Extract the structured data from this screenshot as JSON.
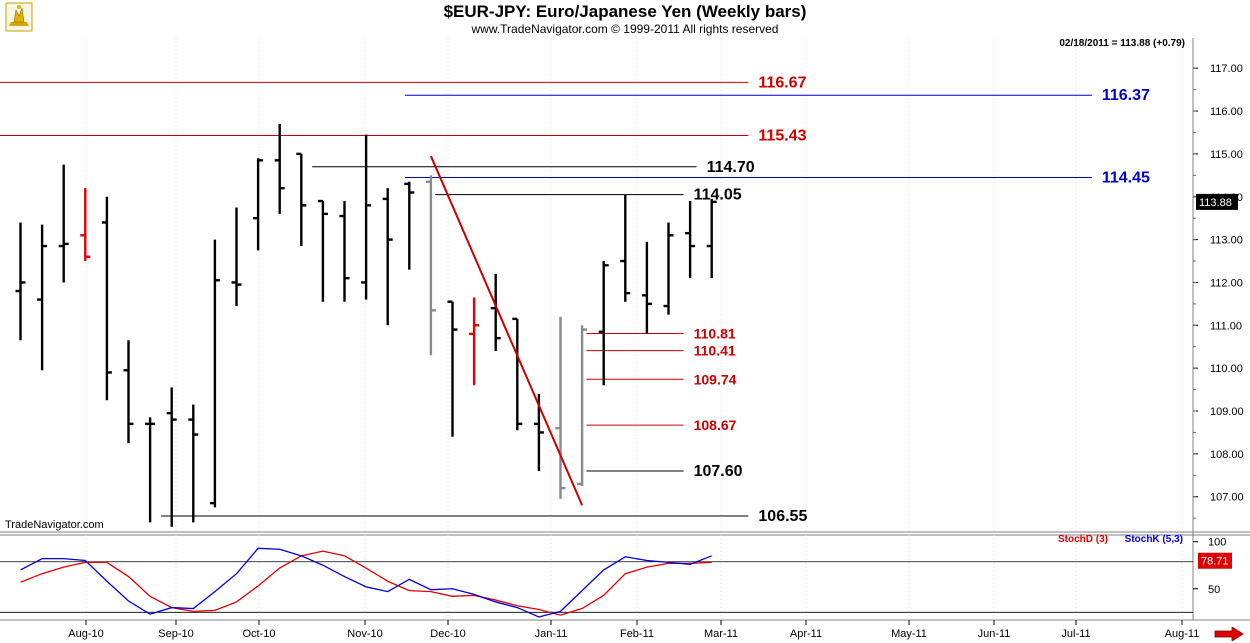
{
  "header": {
    "title": "$EUR-JPY:  Euro/Japanese Yen  (Weekly bars)",
    "copyright": "www.TradeNavigator.com © 1999-2011 All rights reserved",
    "last_quote": "02/18/2011 = 113.88 (+0.79)",
    "watermark": "TradeNavigator.com"
  },
  "colors": {
    "bar": "#000000",
    "bar_highlight_red": "#e00000",
    "bar_gray": "#8a8a8a",
    "level_red": "#cc0000",
    "level_blue": "#0000cc",
    "level_black": "#000000",
    "trendline": "#cc0000",
    "stoch_d": "#e00000",
    "stoch_k": "#0000e0",
    "price_box_bg": "#000000",
    "stoch_box_bg": "#e00000"
  },
  "chart_data": [
    {
      "type": "ohlc",
      "y_axis": {
        "ticks": [
          107.0,
          108.0,
          109.0,
          110.0,
          111.0,
          112.0,
          113.0,
          114.0,
          115.0,
          116.0,
          117.0
        ],
        "range": [
          106.2,
          117.4
        ],
        "position": "right"
      },
      "x_axis": {
        "month_labels": [
          "Aug-10",
          "Sep-10",
          "Oct-10",
          "Nov-10",
          "Dec-10",
          "Jan-11",
          "Feb-11",
          "Mar-11",
          "Apr-11",
          "May-11",
          "Jun-11",
          "Jul-11",
          "Aug-11"
        ]
      },
      "current_price_label": "113.88",
      "bars": [
        {
          "x": 0,
          "o": 111.8,
          "h": 113.4,
          "l": 110.65,
          "c": 112.0,
          "color": "black"
        },
        {
          "x": 1,
          "o": 111.6,
          "h": 113.35,
          "l": 109.95,
          "c": 112.85,
          "color": "black"
        },
        {
          "x": 2,
          "o": 112.85,
          "h": 114.75,
          "l": 112.0,
          "c": 112.9,
          "color": "black"
        },
        {
          "x": 3,
          "o": 113.1,
          "h": 114.2,
          "l": 112.5,
          "c": 112.6,
          "color": "red"
        },
        {
          "x": 4,
          "o": 113.4,
          "h": 114.0,
          "l": 109.25,
          "c": 109.9,
          "color": "black"
        },
        {
          "x": 5,
          "o": 109.95,
          "h": 110.65,
          "l": 108.25,
          "c": 108.7,
          "color": "black"
        },
        {
          "x": 6,
          "o": 108.7,
          "h": 108.85,
          "l": 106.4,
          "c": 108.7,
          "color": "black"
        },
        {
          "x": 7,
          "o": 108.95,
          "h": 109.55,
          "l": 106.3,
          "c": 108.8,
          "color": "black"
        },
        {
          "x": 8,
          "o": 108.8,
          "h": 109.15,
          "l": 106.4,
          "c": 108.45,
          "color": "black"
        },
        {
          "x": 9,
          "o": 106.85,
          "h": 113.0,
          "l": 106.75,
          "c": 112.05,
          "color": "black"
        },
        {
          "x": 10,
          "o": 112.0,
          "h": 113.75,
          "l": 111.45,
          "c": 111.95,
          "color": "black"
        },
        {
          "x": 11,
          "o": 113.5,
          "h": 114.9,
          "l": 112.75,
          "c": 114.85,
          "color": "black"
        },
        {
          "x": 12,
          "o": 114.85,
          "h": 115.7,
          "l": 113.6,
          "c": 114.2,
          "color": "black"
        },
        {
          "x": 13,
          "o": 115.0,
          "h": 115.0,
          "l": 112.85,
          "c": 113.8,
          "color": "black"
        },
        {
          "x": 14,
          "o": 113.9,
          "h": 113.9,
          "l": 111.55,
          "c": 113.6,
          "color": "black"
        },
        {
          "x": 15,
          "o": 113.55,
          "h": 113.9,
          "l": 111.55,
          "c": 112.1,
          "color": "black"
        },
        {
          "x": 16,
          "o": 112.0,
          "h": 115.45,
          "l": 111.6,
          "c": 113.8,
          "color": "black"
        },
        {
          "x": 17,
          "o": 113.95,
          "h": 114.2,
          "l": 111.0,
          "c": 113.0,
          "color": "black"
        },
        {
          "x": 18,
          "o": 114.3,
          "h": 114.35,
          "l": 112.3,
          "c": 114.1,
          "color": "black"
        },
        {
          "x": 19,
          "o": 114.35,
          "h": 114.5,
          "l": 110.3,
          "c": 111.35,
          "color": "gray"
        },
        {
          "x": 20,
          "o": 111.55,
          "h": 111.55,
          "l": 108.4,
          "c": 110.9,
          "color": "black"
        },
        {
          "x": 21,
          "o": 110.8,
          "h": 111.65,
          "l": 109.6,
          "c": 111.0,
          "color": "red"
        },
        {
          "x": 22,
          "o": 111.4,
          "h": 112.2,
          "l": 110.4,
          "c": 110.7,
          "color": "black"
        },
        {
          "x": 23,
          "o": 111.15,
          "h": 111.15,
          "l": 108.55,
          "c": 108.7,
          "color": "black"
        },
        {
          "x": 24,
          "o": 108.7,
          "h": 109.4,
          "l": 107.6,
          "c": 108.5,
          "color": "black"
        },
        {
          "x": 25,
          "o": 108.6,
          "h": 111.2,
          "l": 106.95,
          "c": 107.2,
          "color": "gray"
        },
        {
          "x": 26,
          "o": 107.3,
          "h": 111.0,
          "l": 107.25,
          "c": 110.9,
          "color": "gray"
        },
        {
          "x": 27,
          "o": 110.85,
          "h": 112.5,
          "l": 109.6,
          "c": 112.4,
          "color": "black"
        },
        {
          "x": 28,
          "o": 112.5,
          "h": 114.05,
          "l": 111.55,
          "c": 111.75,
          "color": "black"
        },
        {
          "x": 29,
          "o": 111.7,
          "h": 112.95,
          "l": 110.8,
          "c": 111.5,
          "color": "black"
        },
        {
          "x": 30,
          "o": 111.45,
          "h": 113.4,
          "l": 111.25,
          "c": 113.1,
          "color": "black"
        },
        {
          "x": 31,
          "o": 113.15,
          "h": 113.9,
          "l": 112.1,
          "c": 112.85,
          "color": "black"
        },
        {
          "x": 32,
          "o": 112.85,
          "h": 113.95,
          "l": 112.1,
          "c": 113.88,
          "color": "black"
        }
      ],
      "levels": [
        {
          "label": "116.67",
          "value": 116.67,
          "color": "red",
          "from_bar": -1,
          "to_bar": 33.7
        },
        {
          "label": "116.37",
          "value": 116.37,
          "color": "blue",
          "from_bar": 17.8,
          "to_bar": 49.6
        },
        {
          "label": "115.43",
          "value": 115.43,
          "color": "red",
          "from_bar": -1,
          "to_bar": 33.7
        },
        {
          "label": "114.70",
          "value": 114.7,
          "color": "black",
          "from_bar": 13.5,
          "to_bar": 31.3
        },
        {
          "label": "114.45",
          "value": 114.45,
          "color": "blue",
          "from_bar": 17.8,
          "to_bar": 49.6
        },
        {
          "label": "114.05",
          "value": 114.05,
          "color": "black",
          "from_bar": 19.2,
          "to_bar": 30.7
        },
        {
          "label": "110.81",
          "value": 110.81,
          "color": "red",
          "from_bar": 26.2,
          "to_bar": 30.7
        },
        {
          "label": "110.41",
          "value": 110.41,
          "color": "red",
          "from_bar": 26.2,
          "to_bar": 30.7
        },
        {
          "label": "109.74",
          "value": 109.74,
          "color": "red",
          "from_bar": 26.2,
          "to_bar": 30.7
        },
        {
          "label": "108.67",
          "value": 108.67,
          "color": "red",
          "from_bar": 26.2,
          "to_bar": 30.7
        },
        {
          "label": "107.60",
          "value": 107.6,
          "color": "black",
          "from_bar": 26.2,
          "to_bar": 30.7
        },
        {
          "label": "106.55",
          "value": 106.55,
          "color": "black",
          "from_bar": 6.5,
          "to_bar": 33.7
        }
      ],
      "trendline": {
        "from": {
          "x": 19,
          "y": 114.95
        },
        "to": {
          "x": 26,
          "y": 106.8
        }
      }
    },
    {
      "type": "line",
      "title_d": "StochD (3)",
      "title_k": "StochK (5,3)",
      "y_axis": {
        "ticks": [
          50,
          100
        ],
        "range": [
          20,
          105
        ],
        "reference_line": 78.71
      },
      "current_value_label": "78.71",
      "series": [
        {
          "name": "StochD (3)",
          "color": "red",
          "values": [
            57,
            66,
            73,
            78,
            78,
            63,
            42,
            30,
            26,
            27,
            36,
            53,
            72,
            85,
            90,
            85,
            72,
            58,
            48,
            47,
            42,
            43,
            38,
            32,
            28,
            22,
            29,
            43,
            66,
            73,
            77,
            77,
            78
          ]
        },
        {
          "name": "StochK (5,3)",
          "color": "blue",
          "values": [
            70,
            82,
            82,
            80,
            58,
            37,
            23,
            30,
            29,
            47,
            66,
            93,
            92,
            85,
            75,
            63,
            52,
            47,
            60,
            49,
            50,
            44,
            36,
            30,
            20,
            26,
            48,
            70,
            84,
            80,
            78,
            76,
            85
          ]
        }
      ]
    }
  ]
}
